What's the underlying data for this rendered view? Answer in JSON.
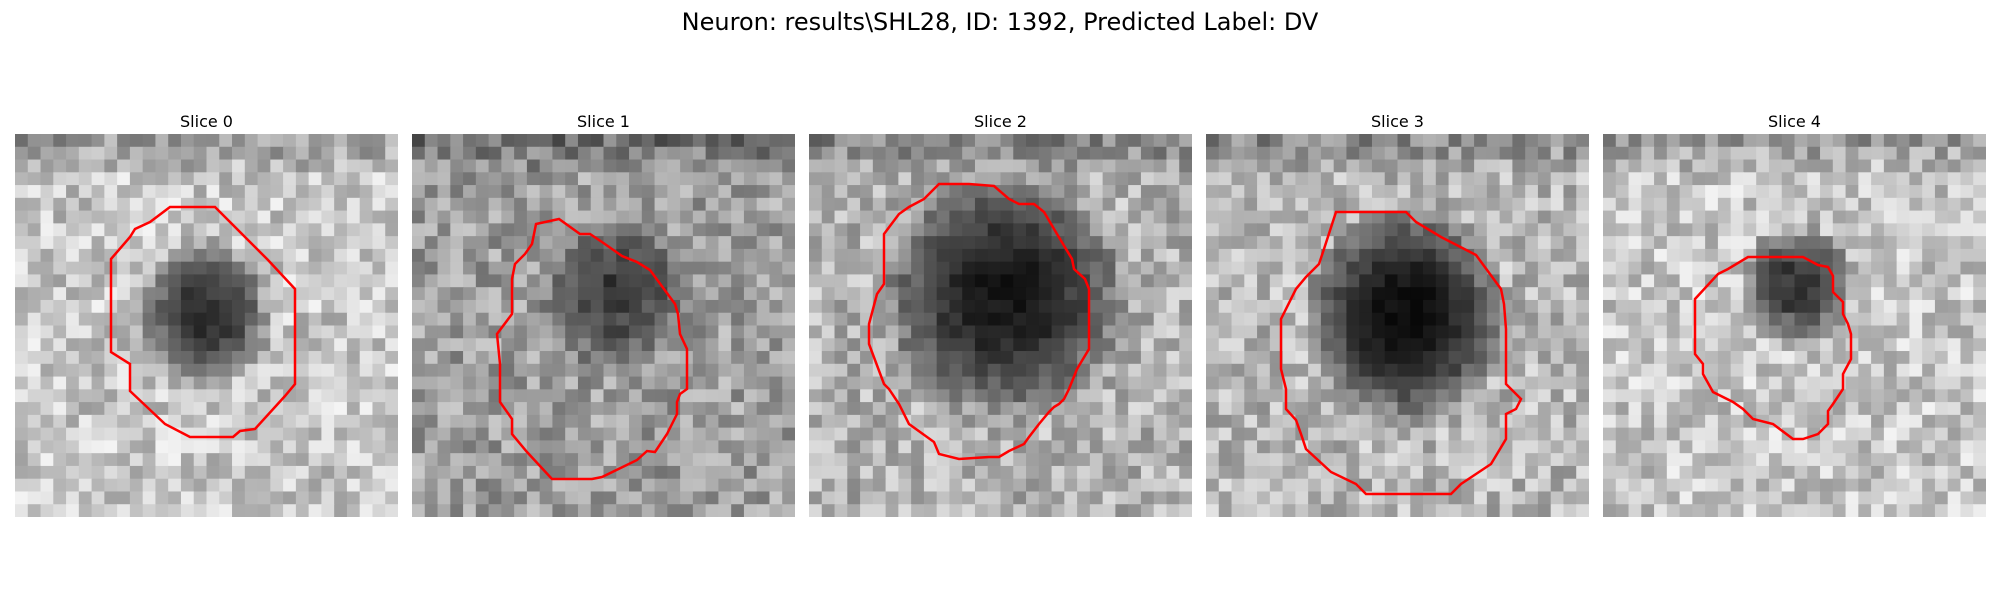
{
  "figure": {
    "title": "Neuron: results\\SHL28, ID: 1392, Predicted Label: DV",
    "contour_color": "#ff0000"
  },
  "slices": [
    {
      "title": "Slice 0",
      "darkness": "medium"
    },
    {
      "title": "Slice 1",
      "darkness": "medium-irregular"
    },
    {
      "title": "Slice 2",
      "darkness": "dark"
    },
    {
      "title": "Slice 3",
      "darkness": "very-dark"
    },
    {
      "title": "Slice 4",
      "darkness": "small-dark"
    }
  ]
}
